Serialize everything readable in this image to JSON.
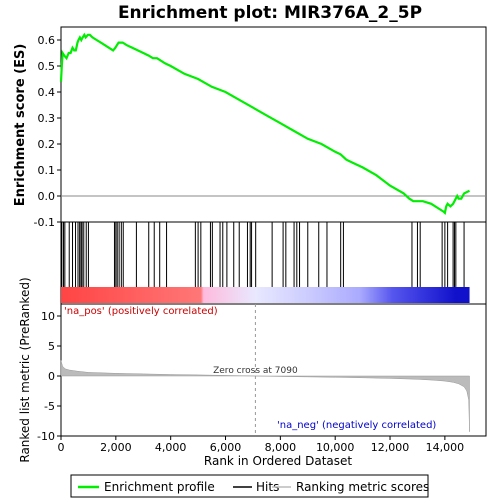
{
  "chart_data": {
    "type": "line",
    "title": "Enrichment plot: MIR376A_2_5P",
    "x_range": [
      0,
      15500
    ],
    "x_ticks": [
      0,
      2000,
      4000,
      6000,
      8000,
      10000,
      12000,
      14000
    ],
    "x_tick_labels": [
      "0",
      "2,000",
      "4,000",
      "6,000",
      "8,000",
      "10,000",
      "12,000",
      "14,000"
    ],
    "xlabel": "Rank in Ordered Dataset",
    "top_panel": {
      "ylabel": "Enrichment score (ES)",
      "ylim": [
        -0.1,
        0.65
      ],
      "y_ticks": [
        -0.1,
        0.0,
        0.1,
        0.2,
        0.3,
        0.4,
        0.5,
        0.6
      ],
      "y_tick_labels": [
        "-0.1",
        "0.0",
        "0.1",
        "0.2",
        "0.3",
        "0.4",
        "0.5",
        "0.6"
      ],
      "grid": false,
      "zero_line": true,
      "series": [
        {
          "name": "Enrichment profile",
          "color": "#00ee00",
          "x": [
            0,
            30,
            60,
            120,
            200,
            280,
            350,
            420,
            480,
            540,
            600,
            640,
            690,
            740,
            790,
            850,
            900,
            980,
            1050,
            1150,
            1300,
            1450,
            1600,
            1750,
            1900,
            1980,
            2040,
            2100,
            2150,
            2250,
            2400,
            2600,
            2800,
            3000,
            3200,
            3350,
            3500,
            3650,
            3800,
            4000,
            4500,
            5000,
            5500,
            6000,
            6500,
            7000,
            7500,
            8000,
            8500,
            9000,
            9500,
            10000,
            10200,
            10400,
            10600,
            11000,
            11500,
            12000,
            12500,
            12700,
            12850,
            13000,
            13100,
            13200,
            13500,
            13800,
            13950,
            14000,
            14050,
            14100,
            14200,
            14300,
            14400,
            14450,
            14500,
            14600,
            14700,
            14900
          ],
          "y": [
            0.44,
            0.5,
            0.55,
            0.54,
            0.53,
            0.55,
            0.55,
            0.57,
            0.56,
            0.56,
            0.59,
            0.6,
            0.61,
            0.6,
            0.61,
            0.62,
            0.61,
            0.62,
            0.62,
            0.61,
            0.6,
            0.59,
            0.58,
            0.57,
            0.56,
            0.57,
            0.58,
            0.59,
            0.59,
            0.59,
            0.58,
            0.57,
            0.56,
            0.55,
            0.54,
            0.53,
            0.53,
            0.52,
            0.51,
            0.5,
            0.47,
            0.45,
            0.42,
            0.4,
            0.37,
            0.34,
            0.31,
            0.28,
            0.25,
            0.22,
            0.2,
            0.17,
            0.16,
            0.14,
            0.13,
            0.11,
            0.08,
            0.04,
            0.01,
            -0.01,
            -0.02,
            -0.02,
            -0.02,
            -0.02,
            -0.03,
            -0.05,
            -0.06,
            -0.065,
            -0.04,
            -0.03,
            -0.04,
            -0.03,
            -0.01,
            0.0,
            -0.01,
            -0.01,
            0.01,
            0.02
          ]
        }
      ]
    },
    "hits_panel": {
      "hit_ranks": [
        30,
        90,
        140,
        300,
        420,
        530,
        620,
        680,
        730,
        770,
        830,
        920,
        1000,
        1950,
        2000,
        2050,
        2120,
        2200,
        2270,
        2750,
        3200,
        3400,
        3600,
        3850,
        4900,
        5000,
        5100,
        5450,
        5520,
        5800,
        5900,
        6050,
        6300,
        6500,
        6800,
        6900,
        6950,
        7100,
        7700,
        8100,
        8200,
        8500,
        8600,
        8700,
        9000,
        9400,
        9700,
        10200,
        10300,
        12800,
        13000,
        13100,
        13900,
        14000,
        14100,
        14300,
        14350,
        14400,
        14700
      ],
      "color_bar_stops": [
        {
          "rank": 0,
          "color": "#ff4444"
        },
        {
          "rank": 5100,
          "color": "#ff7777"
        },
        {
          "rank": 5200,
          "color": "#ffbbdd"
        },
        {
          "rank": 7090,
          "color": "#e8e8ff"
        },
        {
          "rank": 9000,
          "color": "#ccccff"
        },
        {
          "rank": 10900,
          "color": "#aaaaff"
        },
        {
          "rank": 12100,
          "color": "#5555ee"
        },
        {
          "rank": 14400,
          "color": "#1111cc"
        },
        {
          "rank": 14900,
          "color": "#1111cc"
        }
      ]
    },
    "bottom_panel": {
      "ylabel": "Ranked list metric (PreRanked)",
      "ylim": [
        -10,
        12
      ],
      "y_ticks": [
        -10,
        -5,
        0,
        5,
        10
      ],
      "y_tick_labels": [
        "-10",
        "-5",
        "0",
        "5",
        "10"
      ],
      "x": [
        0,
        60,
        150,
        300,
        600,
        1000,
        2000,
        3000,
        4000,
        5000,
        6000,
        7090,
        8000,
        9000,
        10000,
        11000,
        12000,
        13000,
        13600,
        14000,
        14300,
        14500,
        14700,
        14800,
        14870,
        14900
      ],
      "values": [
        2.6,
        1.6,
        1.2,
        1.0,
        0.8,
        0.6,
        0.45,
        0.35,
        0.25,
        0.18,
        0.1,
        0.0,
        -0.08,
        -0.15,
        -0.22,
        -0.3,
        -0.4,
        -0.55,
        -0.7,
        -0.85,
        -1.05,
        -1.3,
        -1.8,
        -2.5,
        -4.0,
        -9.3
      ],
      "fill_color": "#bbbbbb",
      "zero_cross_rank": 7090,
      "zero_cross_label": "Zero cross at 7090",
      "pos_label": "'na_pos' (positively correlated)",
      "neg_label": "'na_neg' (negatively correlated)",
      "pos_label_color": "#cc0000",
      "neg_label_color": "#0000cc"
    },
    "legend": {
      "placement": "bottom",
      "entries": [
        {
          "label": "Enrichment profile",
          "color": "#00ee00"
        },
        {
          "label": "Hits",
          "color": "#000000"
        },
        {
          "label": "Ranking metric scores",
          "color": "#bbbbbb"
        }
      ]
    }
  }
}
